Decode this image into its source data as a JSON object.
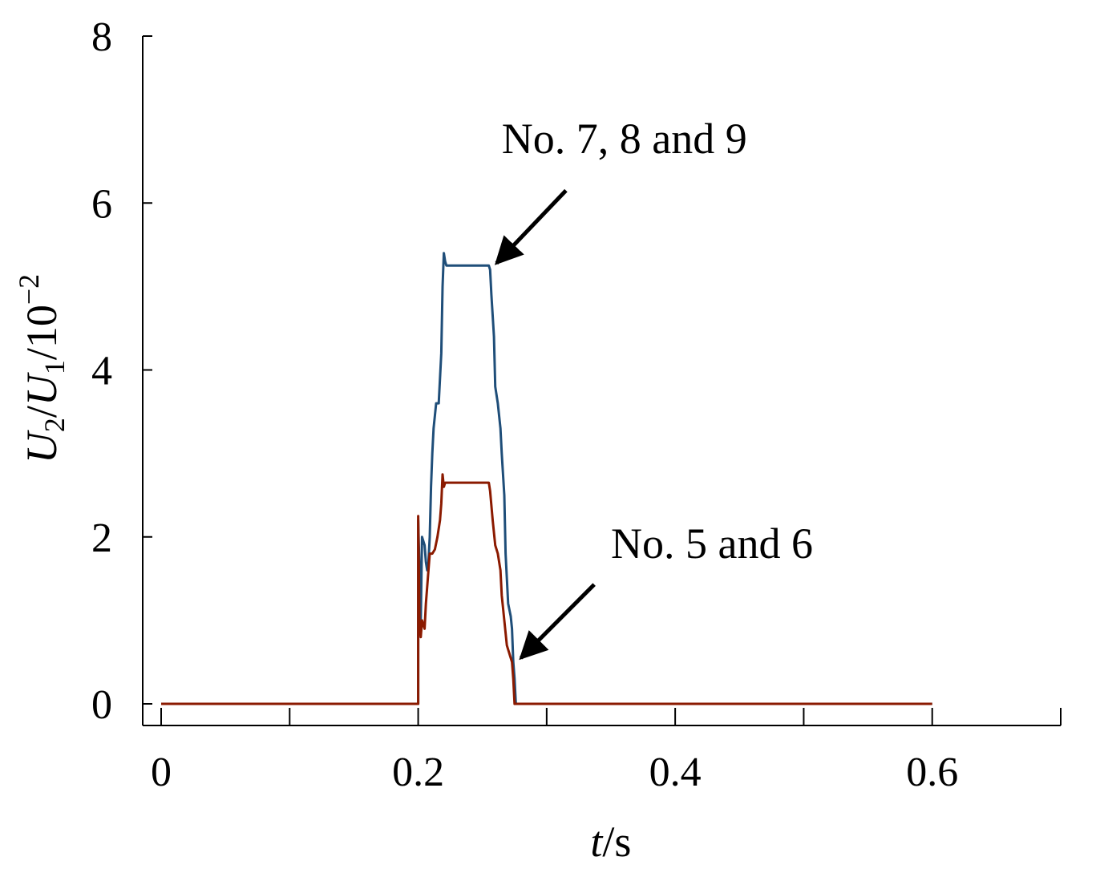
{
  "chart_data": {
    "type": "line",
    "xlabel": {
      "italic": "t",
      "rest": "/s"
    },
    "ylabel": {
      "parts": [
        {
          "text": "U",
          "style": "italic"
        },
        {
          "text": "2",
          "style": "sub"
        },
        {
          "text": "/",
          "style": "normal"
        },
        {
          "text": "U",
          "style": "italic"
        },
        {
          "text": "1",
          "style": "sub"
        },
        {
          "text": "/10",
          "style": "normal"
        },
        {
          "text": "−2",
          "style": "sup"
        }
      ]
    },
    "xlim": [
      0,
      0.7
    ],
    "ylim": [
      0,
      8
    ],
    "x_tick_labels": [
      {
        "value": 0,
        "label": "0"
      },
      {
        "value": 0.2,
        "label": "0.2"
      },
      {
        "value": 0.4,
        "label": "0.4"
      },
      {
        "value": 0.6,
        "label": "0.6"
      }
    ],
    "x_minor_ticks": [
      0,
      0.1,
      0.2,
      0.3,
      0.4,
      0.5,
      0.6,
      0.7
    ],
    "y_tick_labels": [
      {
        "value": 0,
        "label": "0"
      },
      {
        "value": 2,
        "label": "2"
      },
      {
        "value": 4,
        "label": "4"
      },
      {
        "value": 6,
        "label": "6"
      },
      {
        "value": 8,
        "label": "8"
      }
    ],
    "series": [
      {
        "name": "No. 7, 8 and 9",
        "color": "#1f4e79",
        "points": [
          [
            0,
            0
          ],
          [
            0.2,
            0
          ],
          [
            0.2,
            2.2
          ],
          [
            0.202,
            1.0
          ],
          [
            0.203,
            2.0
          ],
          [
            0.205,
            1.9
          ],
          [
            0.206,
            1.7
          ],
          [
            0.207,
            1.6
          ],
          [
            0.208,
            1.7
          ],
          [
            0.209,
            2.0
          ],
          [
            0.21,
            2.6
          ],
          [
            0.211,
            3.0
          ],
          [
            0.212,
            3.3
          ],
          [
            0.214,
            3.6
          ],
          [
            0.216,
            3.6
          ],
          [
            0.217,
            3.9
          ],
          [
            0.218,
            4.2
          ],
          [
            0.219,
            5.0
          ],
          [
            0.22,
            5.4
          ],
          [
            0.221,
            5.3
          ],
          [
            0.222,
            5.25
          ],
          [
            0.23,
            5.25
          ],
          [
            0.255,
            5.25
          ],
          [
            0.256,
            5.2
          ],
          [
            0.257,
            4.9
          ],
          [
            0.259,
            4.4
          ],
          [
            0.26,
            3.8
          ],
          [
            0.262,
            3.6
          ],
          [
            0.264,
            3.3
          ],
          [
            0.265,
            3.0
          ],
          [
            0.267,
            2.5
          ],
          [
            0.268,
            1.8
          ],
          [
            0.27,
            1.2
          ],
          [
            0.272,
            1.05
          ],
          [
            0.273,
            0.9
          ],
          [
            0.274,
            0.5
          ],
          [
            0.275,
            0.3
          ],
          [
            0.276,
            0
          ],
          [
            0.6,
            0
          ]
        ]
      },
      {
        "name": "No. 5 and 6",
        "color": "#8b1a00",
        "points": [
          [
            0,
            0
          ],
          [
            0.2,
            0
          ],
          [
            0.2,
            2.25
          ],
          [
            0.201,
            1.0
          ],
          [
            0.202,
            0.8
          ],
          [
            0.203,
            1.0
          ],
          [
            0.205,
            0.9
          ],
          [
            0.206,
            1.2
          ],
          [
            0.207,
            1.4
          ],
          [
            0.208,
            1.6
          ],
          [
            0.209,
            1.8
          ],
          [
            0.211,
            1.8
          ],
          [
            0.213,
            1.85
          ],
          [
            0.215,
            2.0
          ],
          [
            0.217,
            2.2
          ],
          [
            0.218,
            2.4
          ],
          [
            0.219,
            2.75
          ],
          [
            0.22,
            2.6
          ],
          [
            0.221,
            2.65
          ],
          [
            0.223,
            2.65
          ],
          [
            0.23,
            2.65
          ],
          [
            0.255,
            2.65
          ],
          [
            0.256,
            2.55
          ],
          [
            0.258,
            2.2
          ],
          [
            0.26,
            1.9
          ],
          [
            0.262,
            1.8
          ],
          [
            0.264,
            1.6
          ],
          [
            0.265,
            1.3
          ],
          [
            0.267,
            1.0
          ],
          [
            0.269,
            0.7
          ],
          [
            0.271,
            0.6
          ],
          [
            0.273,
            0.5
          ],
          [
            0.274,
            0.3
          ],
          [
            0.275,
            0
          ],
          [
            0.6,
            0
          ]
        ]
      }
    ],
    "annotations": [
      {
        "id": "annotation-no-789",
        "text": "No. 7, 8 and 9",
        "text_at": [
          0.265,
          6.6
        ],
        "arrow_from": [
          0.315,
          6.15
        ],
        "arrow_to": [
          0.261,
          5.28
        ]
      },
      {
        "id": "annotation-no-56",
        "text": "No. 5 and 6",
        "text_at": [
          0.35,
          1.75
        ],
        "arrow_from": [
          0.337,
          1.43
        ],
        "arrow_to": [
          0.28,
          0.55
        ]
      }
    ]
  }
}
